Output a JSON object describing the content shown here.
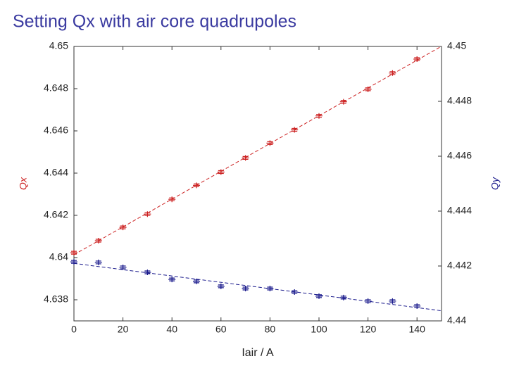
{
  "chart_data": {
    "type": "scatter",
    "title": "Setting Qx with air core quadrupoles",
    "x_label": "Iair / A",
    "y_label": "Qx",
    "y2_label": "Qy",
    "x": [
      0,
      10,
      20,
      30,
      40,
      50,
      60,
      70,
      80,
      90,
      100,
      110,
      120,
      130,
      140
    ],
    "series": [
      {
        "color": "#cc2020",
        "axis": "y",
        "values": [
          4.64023,
          4.6408,
          4.64143,
          4.64206,
          4.64276,
          4.64342,
          4.64405,
          4.64472,
          4.64542,
          4.64605,
          4.64671,
          4.64738,
          4.64797,
          4.64874,
          4.6494
        ]
      },
      {
        "color": "#1a1a8c",
        "axis": "y2",
        "values": [
          4.44215,
          4.44213,
          4.44195,
          4.44177,
          4.44151,
          4.44144,
          4.44126,
          4.44118,
          4.44118,
          4.44105,
          4.4409,
          4.44085,
          4.44072,
          4.44072,
          4.44054
        ]
      }
    ],
    "xlim": [
      0,
      150
    ],
    "xticks": [
      0,
      20,
      40,
      60,
      80,
      100,
      120,
      140
    ],
    "ylim": [
      4.637,
      4.65
    ],
    "yticks": [
      4.638,
      4.64,
      4.642,
      4.644,
      4.646,
      4.648,
      4.65
    ],
    "y2lim": [
      4.44,
      4.45
    ],
    "y2ticks": [
      4.44,
      4.442,
      4.444,
      4.446,
      4.448,
      4.45
    ],
    "grid": false
  }
}
